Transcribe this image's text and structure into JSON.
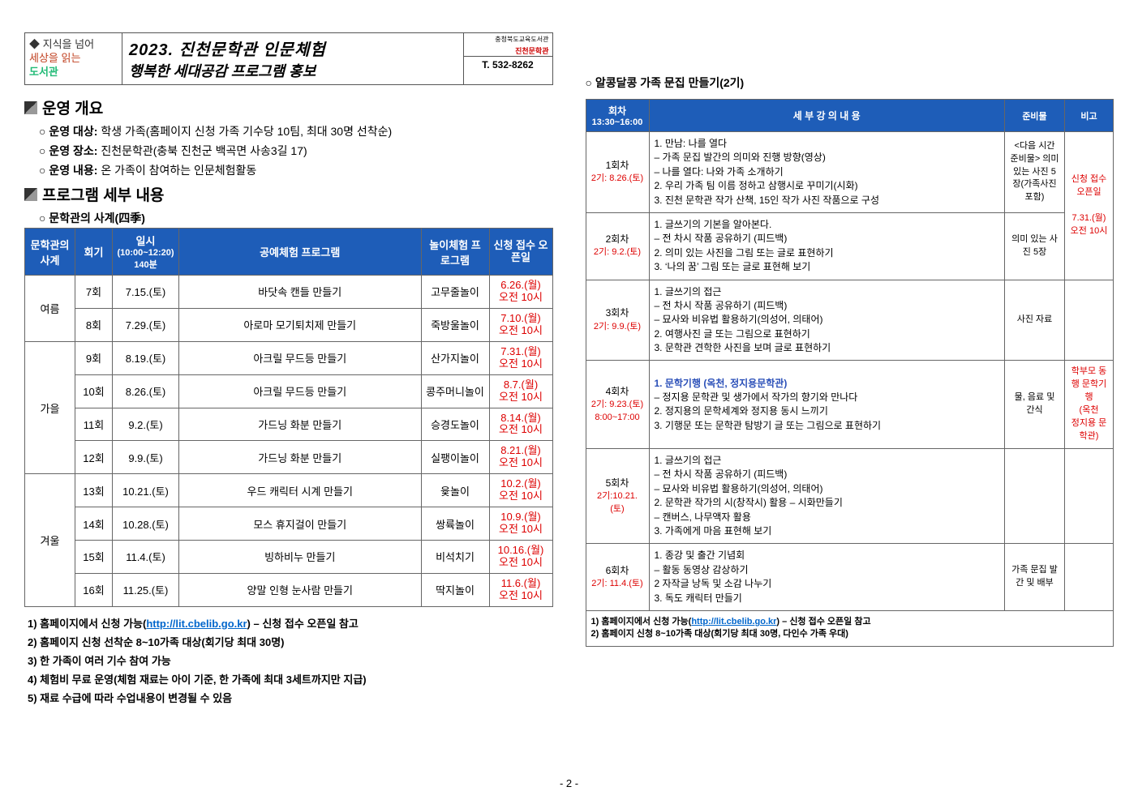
{
  "colors": {
    "header_bg": "#1e5db8",
    "header_text": "#ffffff",
    "red": "#d00000",
    "link": "#0066cc",
    "border": "#666666"
  },
  "banner": {
    "tag_line1": "◆ 지식을 넘어",
    "tag_line2": "세상을 읽는",
    "tag_line3": "도서관",
    "title1": "2023. 진천문학관 인문체험",
    "title2": "행복한 세대공감 프로그램 홍보",
    "org1": "충청북도교육도서관",
    "org2": "진천문학관",
    "tel": "T. 532-8262"
  },
  "sec1": {
    "title": "운영 개요",
    "b1_label": "운영 대상:",
    "b1_text": "학생 가족(홈페이지 신청 가족 기수당 10팀, 최대 30명 선착순)",
    "b2_label": "운영 장소:",
    "b2_text": "진천문학관(충북 진천군 백곡면 사송3길 17)",
    "b3_label": "운영 내용:",
    "b3_text": "온 가족이 참여하는 인문체험활동"
  },
  "sec2": {
    "title": "프로그램 세부 내용",
    "sub": "문학관의 사계(四季)"
  },
  "left_table": {
    "headers": {
      "season": "문학관의\n사계",
      "round": "회기",
      "datetime": "일시",
      "datetime_sub": "(10:00~12:20)\n140분",
      "craft": "공예체험 프로그램",
      "play": "놀이체험\n프로그램",
      "open": "신청 접수\n오픈일"
    },
    "seasons": [
      {
        "name": "여름",
        "rows": [
          {
            "round": "7회",
            "date": "7.15.(토)",
            "craft": "바닷속 캔들 만들기",
            "play": "고무줄놀이",
            "open": "6.26.(월)\n오전 10시"
          },
          {
            "round": "8회",
            "date": "7.29.(토)",
            "craft": "아로마 모기퇴치제 만들기",
            "play": "죽방울놀이",
            "open": "7.10.(월)\n오전 10시"
          }
        ]
      },
      {
        "name": "가을",
        "rows": [
          {
            "round": "9회",
            "date": "8.19.(토)",
            "craft": "아크릴 무드등 만들기",
            "play": "산가지놀이",
            "open": "7.31.(월)\n오전 10시"
          },
          {
            "round": "10회",
            "date": "8.26.(토)",
            "craft": "아크릴 무드등 만들기",
            "play": "콩주머니놀이",
            "open": "8.7.(월)\n오전 10시"
          },
          {
            "round": "11회",
            "date": "9.2.(토)",
            "craft": "가드닝 화분 만들기",
            "play": "승경도놀이",
            "open": "8.14.(월)\n오전 10시"
          },
          {
            "round": "12회",
            "date": "9.9.(토)",
            "craft": "가드닝 화분 만들기",
            "play": "실팽이놀이",
            "open": "8.21.(월)\n오전 10시"
          }
        ]
      },
      {
        "name": "겨울",
        "rows": [
          {
            "round": "13회",
            "date": "10.21.(토)",
            "craft": "우드 캐릭터 시계 만들기",
            "play": "윷놀이",
            "open": "10.2.(월)\n오전 10시"
          },
          {
            "round": "14회",
            "date": "10.28.(토)",
            "craft": "모스 휴지걸이 만들기",
            "play": "쌍륙놀이",
            "open": "10.9.(월)\n오전 10시"
          },
          {
            "round": "15회",
            "date": "11.4.(토)",
            "craft": "빙하비누 만들기",
            "play": "비석치기",
            "open": "10.16.(월)\n오전 10시"
          },
          {
            "round": "16회",
            "date": "11.25.(토)",
            "craft": "양말 인형 눈사람 만들기",
            "play": "딱지놀이",
            "open": "11.6.(월)\n오전 10시"
          }
        ]
      }
    ]
  },
  "notes": {
    "n1a": "1) 홈페이지에서 신청 가능(",
    "n1_link": "http://lit.cbelib.go.kr",
    "n1b": ") – 신청 접수 오픈일 참고",
    "n2": "2) 홈페이지 신청 선착순 8~10가족 대상(회기당 최대 30명)",
    "n3": "3) 한 가족이 여러 기수 참여 가능",
    "n4": "4) 체험비 무료 운영(체험 재료는 아이 기준, 한 가족에 최대 3세트까지만 지급)",
    "n5": "5) 재료 수급에 따라 수업내용이 변경될 수 있음"
  },
  "right_section": {
    "title": "알콩달콩 가족 문집 만들기(2기)"
  },
  "right_table": {
    "headers": {
      "session": "회차",
      "session_sub": "13:30~16:00",
      "content": "세 부 강 의 내 용",
      "material": "준비물",
      "note": "비고"
    },
    "rows": [
      {
        "s1": "1회차",
        "s2": "2기: 8.26.(토)",
        "content": "1. 만남: 나를 열다\n  – 가족 문집 발간의 의미와 진행 방향(영상)\n  – 나를 열다: 나와 가족 소개하기\n2. 우리 가족 팀 이름 정하고 삼행시로 꾸미기(시화)\n3. 진천 문학관 작가 산책, 15인 작가 사진 작품으로 구성",
        "material": "<다음 시간 준비물> 의미있는 사진 5장(가족사진 포함)",
        "note": ""
      },
      {
        "s1": "2회차",
        "s2": "2기: 9.2.(토)",
        "content": "1. 글쓰기의 기본을 알아본다.\n  – 전 차시 작품 공유하기 (피드백)\n2. 의미 있는 사진을 그림 또는 글로 표현하기\n3. ‘나의 꿈’ 그림 또는 글로 표현해 보기",
        "material": "의미 있는 사진 5장",
        "note": "신청 접수 오픈일\n\n7.31.(월)\n오전 10시"
      },
      {
        "s1": "3회차",
        "s2": "2기: 9.9.(토)",
        "content": "1. 글쓰기의 접근\n  – 전 차시 작품 공유하기 (피드백)\n  – 묘사와 비유법 활용하기(의성어, 의태어)\n2. 여행사진 글 또는 그림으로 표현하기\n3. 문학관 견학한 사진을 보며 글로 표현하기",
        "material": "사진 자료",
        "note": ""
      },
      {
        "s1": "4회차",
        "s2": "2기: 9.23.(토)\n8:00~17:00",
        "content_hl": "1. 문학기행 (옥천, 정지용문학관)",
        "content": "  – 정지용 문학관 및 생가에서 작가의 향기와 만나다\n2. 정지용의 문학세계와 정지용 동시 느끼기\n3. 기행문 또는 문학관 탐방기 글 또는 그림으로 표현하기",
        "material": "물, 음료 및 간식",
        "note": "학부모 동행 문학기행\n(옥천\n정지용 문학관)"
      },
      {
        "s1": "5회차",
        "s2": "2기:10.21.(토)",
        "content": "1. 글쓰기의 접근\n  – 전 차시 작품 공유하기 (피드백)\n  – 묘사와 비유법 활용하기(의성어, 의태어)\n2. 문학관 작가의 시(창작시) 활용 – 시화만들기\n  – 캔버스, 나무액자 활용\n3. 가족에게 마음 표현해 보기",
        "material": "",
        "note": ""
      },
      {
        "s1": "6회차",
        "s2": "2기: 11.4.(토)",
        "content": "1. 종강 및 출간 기념회\n  – 활동 동영상 감상하기\n2 자작글 낭독 및 소감 나누기\n3. 독도 캐릭터 만들기",
        "material": "가족 문집 발간 및 배부",
        "note": ""
      }
    ],
    "footer1a": "1) 홈페이지에서 신청 가능(",
    "footer1_link": "http://lit.cbelib.go.kr",
    "footer1b": ") – 신청 접수 오픈일 참고",
    "footer2": "2) 홈페이지 신청 8~10가족 대상(회기당 최대 30명, 다인수 가족 우대)"
  },
  "page_num": "- 2 -"
}
